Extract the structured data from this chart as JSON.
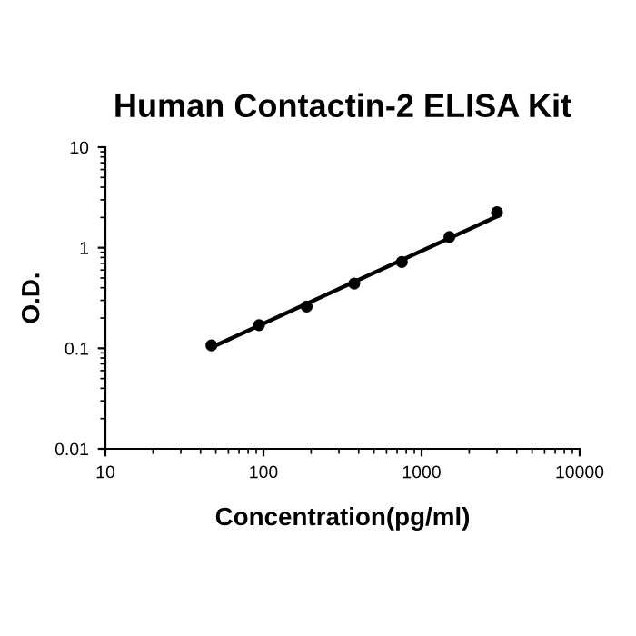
{
  "chart_data": {
    "type": "scatter",
    "title": "Human Contactin-2 ELISA Kit",
    "xlabel": "Concentration(pg/ml)",
    "ylabel": "O.D.",
    "log": "xy",
    "xlim": [
      10,
      10000
    ],
    "xticks": [
      10,
      100,
      1000,
      10000
    ],
    "ylim": [
      0.01,
      10
    ],
    "yticks": [
      0.01,
      0.1,
      1,
      10
    ],
    "grid": false,
    "legend": false,
    "series": [
      {
        "marker": "circle",
        "color": "#000000",
        "x": [
          46.875,
          93.75,
          187.5,
          375,
          750,
          1500,
          3000
        ],
        "values": [
          0.107,
          0.17,
          0.26,
          0.44,
          0.72,
          1.28,
          2.25
        ]
      },
      {
        "type": "line",
        "marker": "none",
        "color": "#000000",
        "line_style": "solid",
        "x": [
          46.875,
          3000
        ],
        "values": [
          0.102,
          2.05
        ]
      }
    ]
  }
}
